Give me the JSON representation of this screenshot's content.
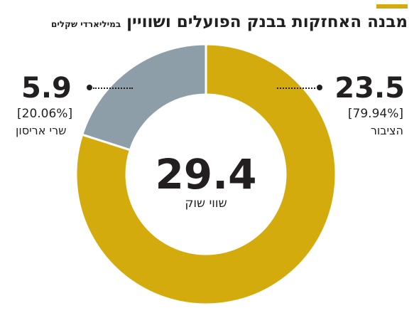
{
  "title": "מבנה האחזקות בבנק הפועלים ושוויין",
  "subtitle": "במיליארדי שקלים",
  "colors": {
    "accent": "#d4ab0c",
    "grey": "#8e9ea8",
    "text": "#231f20"
  },
  "center": {
    "value": "29.4",
    "label": "שווי שוק"
  },
  "chart_data": {
    "type": "pie",
    "title": "מבנה האחזקות בבנק הפועלים ושוויין",
    "subtitle": "במיליארדי שקלים",
    "total": 29.4,
    "slices": [
      {
        "label": "הציבור",
        "value": 23.5,
        "percent": 79.94,
        "value_text": "23.5",
        "percent_text": "[79.94%]",
        "color": "#d4ab0c"
      },
      {
        "label": "שרי אריסון",
        "value": 5.9,
        "percent": 20.06,
        "value_text": "5.9",
        "percent_text": "[20.06%]",
        "color": "#8e9ea8"
      }
    ]
  }
}
